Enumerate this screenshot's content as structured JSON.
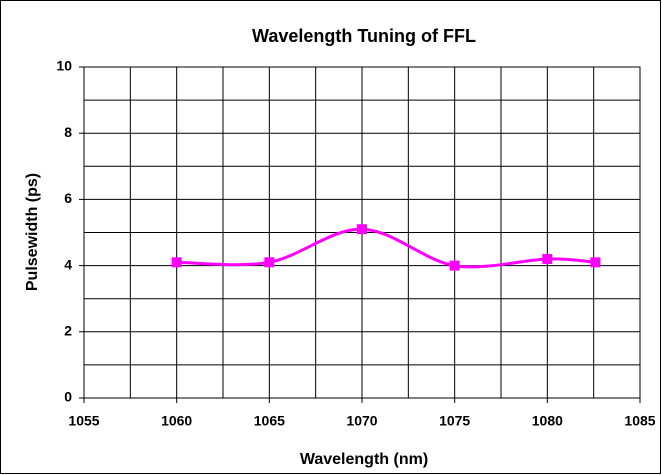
{
  "chart_data": {
    "type": "line",
    "title": "Wavelength Tuning of FFL",
    "x_label": "Wavelength (nm)",
    "y_label": "Pulsewidth (ps)",
    "x": [
      1060,
      1065,
      1070,
      1075,
      1080,
      1082.6
    ],
    "series": [
      {
        "name": "Pulsewidth",
        "color": "#ff00ff",
        "values": [
          4.1,
          4.1,
          5.1,
          4.0,
          4.2,
          4.1
        ]
      }
    ],
    "xlim": [
      1055,
      1085
    ],
    "xticks": [
      1055,
      1060,
      1065,
      1070,
      1075,
      1080,
      1085
    ],
    "xminor": [
      1057.5,
      1062.5,
      1067.5,
      1072.5,
      1077.5,
      1082.5
    ],
    "ylim": [
      0,
      10
    ],
    "yticks": [
      0,
      2,
      4,
      6,
      8,
      10
    ],
    "yminor": [
      1,
      3,
      5,
      7,
      9
    ],
    "grid": true,
    "smooth": true,
    "marker": "square"
  }
}
